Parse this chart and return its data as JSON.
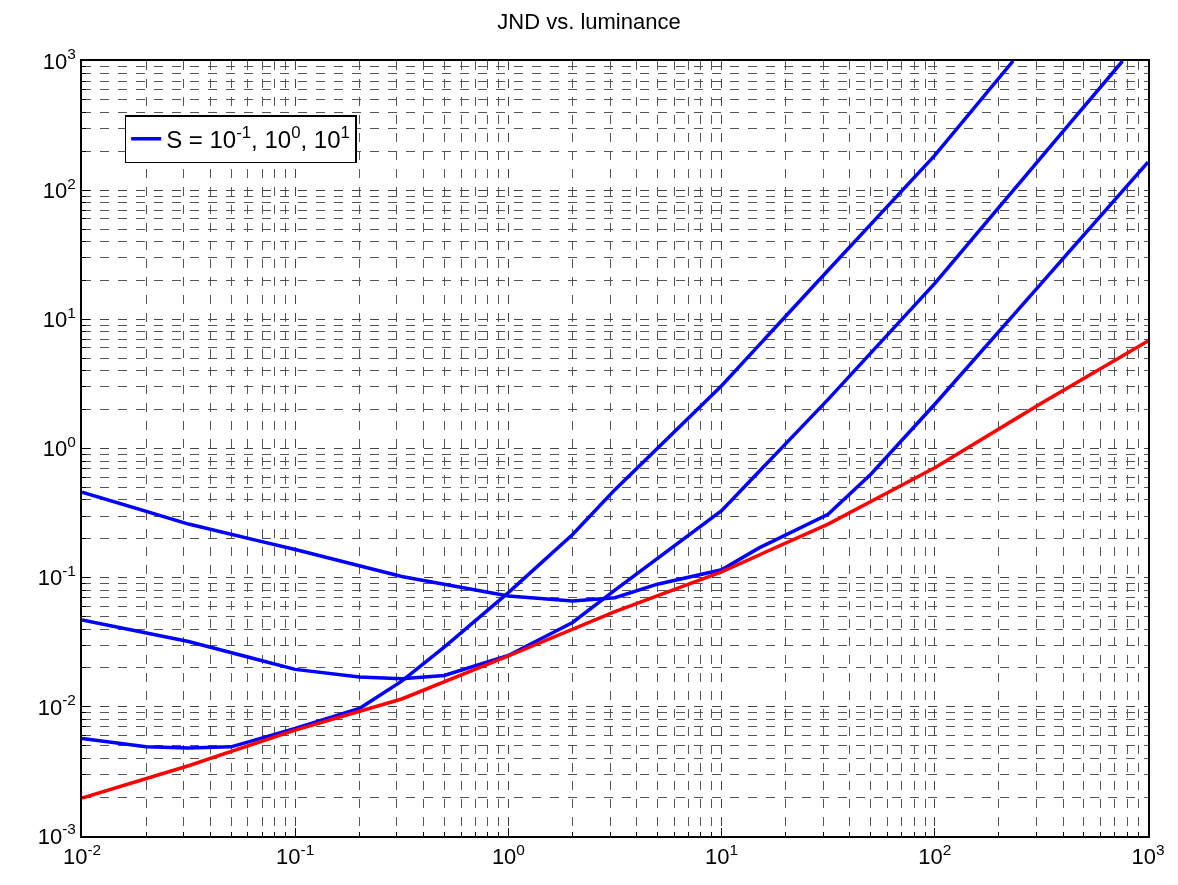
{
  "chart_data": {
    "type": "line",
    "title": "JND vs. luminance",
    "series": [
      {
        "name": "S = 10$^{-1}$, 10$^{0}$, 10$^{1}$",
        "color": "#0000ff",
        "x": [
          0.01,
          0.0316,
          0.1,
          0.316,
          1,
          2,
          3.16,
          5,
          10,
          15,
          31.6,
          50,
          100,
          316,
          1000
        ],
        "values": [
          0.46,
          0.26,
          0.165,
          0.102,
          0.072,
          0.066,
          0.07,
          0.089,
          0.115,
          0.17,
          0.31,
          0.63,
          2.2,
          19,
          165
        ]
      },
      {
        "color": "#0000ff",
        "x": [
          0.01,
          0.0316,
          0.1,
          0.2,
          0.316,
          0.5,
          1,
          2,
          3.16,
          10,
          31.6,
          100,
          316,
          760
        ],
        "values": [
          0.047,
          0.032,
          0.0195,
          0.017,
          0.0165,
          0.0175,
          0.025,
          0.045,
          0.08,
          0.33,
          2.4,
          19,
          180,
          1000
        ]
      },
      {
        "color": "#0000ff",
        "x": [
          0.01,
          0.02,
          0.0316,
          0.05,
          0.1,
          0.2,
          0.316,
          0.5,
          1,
          2,
          3.16,
          10,
          31.6,
          100,
          233
        ],
        "values": [
          0.0057,
          0.0049,
          0.0048,
          0.0049,
          0.0068,
          0.0097,
          0.0158,
          0.029,
          0.0766,
          0.216,
          0.48,
          3.06,
          24,
          186,
          1000
        ]
      },
      {
        "color": "#ff0000",
        "x": [
          0.01,
          0.0316,
          0.1,
          0.316,
          1,
          3.16,
          10,
          31.6,
          100,
          316,
          1000
        ],
        "values": [
          0.00197,
          0.0035,
          0.0066,
          0.0115,
          0.0248,
          0.0545,
          0.111,
          0.26,
          0.71,
          2.24,
          6.8
        ]
      }
    ],
    "log": "xy",
    "grid": true,
    "legend": "top left",
    "xlim": [
      0.01,
      1000
    ],
    "xticks": [
      {
        "value": 0.01,
        "label": "10$^{-2}$"
      },
      {
        "value": 0.1,
        "label": "10$^{-1}$"
      },
      {
        "value": 1,
        "label": "10$^{0}$"
      },
      {
        "value": 10,
        "label": "10$^{1}$"
      },
      {
        "value": 100,
        "label": "10$^{2}$"
      },
      {
        "value": 1000,
        "label": "10$^{3}$"
      }
    ],
    "ylim": [
      0.001,
      1000
    ],
    "yticks": [
      {
        "value": 0.001,
        "label": "10$^{-3}$"
      },
      {
        "value": 0.01,
        "label": "10$^{-2}$"
      },
      {
        "value": 0.1,
        "label": "10$^{-1}$"
      },
      {
        "value": 1,
        "label": "10$^{0}$"
      },
      {
        "value": 10,
        "label": "10$^{1}$"
      },
      {
        "value": 100,
        "label": "10$^{2}$"
      },
      {
        "value": 1000,
        "label": "10$^{3}$"
      }
    ],
    "line_style": "solid"
  }
}
